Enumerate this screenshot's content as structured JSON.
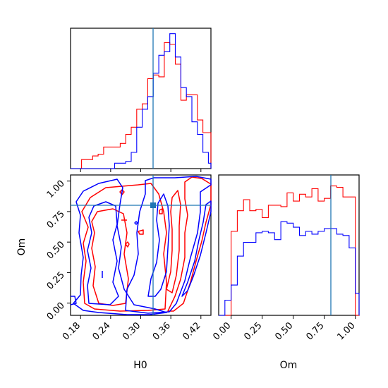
{
  "chart_data": {
    "type": "corner",
    "params": [
      "H0",
      "Om"
    ],
    "truths": {
      "H0": 0.334,
      "Om": 0.8
    },
    "colors": {
      "series_1": "#ff0000",
      "series_2": "#0000ff",
      "truth": "#1f77b4"
    },
    "panels": [
      {
        "name": "H0 marginal",
        "type": "histogram",
        "xlim": [
          0.16,
          0.44
        ],
        "bins": [
          0.16,
          0.171,
          0.182,
          0.193,
          0.204,
          0.215,
          0.226,
          0.237,
          0.248,
          0.259,
          0.27,
          0.281,
          0.292,
          0.303,
          0.314,
          0.325,
          0.336,
          0.347,
          0.358,
          0.369,
          0.38,
          0.391,
          0.402,
          0.413,
          0.424,
          0.435,
          0.44
        ],
        "series": [
          {
            "color": "#ff0000",
            "values": [
              0,
              0,
              0.05,
              0.05,
              0.07,
              0.08,
              0.12,
              0.12,
              0.12,
              0.14,
              0.19,
              0.23,
              0.33,
              0.36,
              0.5,
              0.52,
              0.51,
              0.7,
              0.69,
              0.58,
              0.38,
              0.41,
              0.41,
              0.27,
              0.2,
              0.2
            ]
          },
          {
            "color": "#0000ff",
            "values": [
              0,
              0,
              0,
              0,
              0,
              0,
              0,
              0,
              0.03,
              0.03,
              0.04,
              0.09,
              0.23,
              0.33,
              0.4,
              0.53,
              0.63,
              0.65,
              0.75,
              0.62,
              0.45,
              0.4,
              0.26,
              0.19,
              0.09,
              0.03
            ]
          }
        ]
      },
      {
        "name": "H0 vs Om",
        "type": "contour",
        "xlim": [
          0.16,
          0.44
        ],
        "ylim": [
          -0.1,
          1.05
        ],
        "xticks": [
          "0.18",
          "0.24",
          "0.30",
          "0.36",
          "0.42"
        ],
        "yticks": [
          "0.00",
          "0.25",
          "0.50",
          "0.75",
          "1.00"
        ]
      },
      {
        "name": "Om marginal",
        "type": "histogram",
        "xlim": [
          -0.1,
          1.03
        ],
        "bins": [
          -0.1,
          -0.05,
          0.0,
          0.05,
          0.1,
          0.15,
          0.2,
          0.25,
          0.3,
          0.35,
          0.4,
          0.45,
          0.5,
          0.55,
          0.6,
          0.65,
          0.7,
          0.75,
          0.8,
          0.85,
          0.9,
          0.95,
          1.0,
          1.03
        ],
        "series": [
          {
            "color": "#ff0000",
            "values": [
              0,
              0,
              0.61,
              0.76,
              0.84,
              0.76,
              0.77,
              0.71,
              0.8,
              0.8,
              0.79,
              0.89,
              0.83,
              0.88,
              0.86,
              0.92,
              0.83,
              0.85,
              0.94,
              0.93,
              0.86,
              0.86,
              0.0
            ]
          },
          {
            "color": "#0000ff",
            "values": [
              0,
              0.11,
              0.22,
              0.43,
              0.53,
              0.53,
              0.6,
              0.61,
              0.6,
              0.55,
              0.68,
              0.67,
              0.64,
              0.58,
              0.61,
              0.59,
              0.61,
              0.63,
              0.63,
              0.59,
              0.58,
              0.49,
              0.16
            ]
          }
        ]
      }
    ],
    "xlabel_left": "H0",
    "xlabel_right": "Om",
    "ylabel_left": "Om",
    "marginal_h0_ticks": [
      "",
      "",
      "",
      "",
      ""
    ],
    "om_xticks": [
      "0.00",
      "0.25",
      "0.50",
      "0.75",
      "1.00"
    ]
  }
}
